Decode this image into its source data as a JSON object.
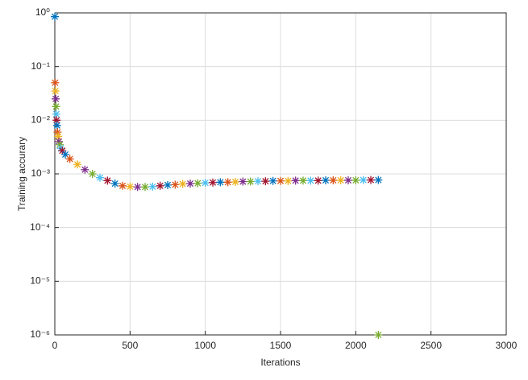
{
  "chart_data": {
    "type": "scatter",
    "x_label": "Iterations",
    "y_label": "Training accurary",
    "xlim": [
      0,
      3000
    ],
    "xticks": [
      0,
      500,
      1000,
      1500,
      2000,
      2500,
      3000
    ],
    "ylim": [
      1e-06,
      1
    ],
    "log_y": true,
    "grid": true,
    "yticks": [
      {
        "value": 1e-06,
        "label": "10⁻⁶"
      },
      {
        "value": 1e-05,
        "label": "10⁻⁵"
      },
      {
        "value": 0.0001,
        "label": "10⁻⁴"
      },
      {
        "value": 0.001,
        "label": "10⁻³"
      },
      {
        "value": 0.01,
        "label": "10⁻²"
      },
      {
        "value": 0.1,
        "label": "10⁻¹"
      },
      {
        "value": 1,
        "label": "10⁰"
      }
    ],
    "series": [
      {
        "colors": [
          "#0072bd",
          "#d95319",
          "#edb120",
          "#7e2f8e",
          "#77ac30",
          "#4dbeee",
          "#a2142f"
        ],
        "x": [
          0,
          2,
          4,
          6,
          8,
          10,
          12,
          15,
          18,
          22,
          27,
          33,
          40,
          50,
          70,
          100,
          150,
          200,
          250,
          300,
          350,
          400,
          450,
          500,
          550,
          600,
          650,
          700,
          750,
          800,
          850,
          900,
          950,
          1000,
          1050,
          1100,
          1150,
          1200,
          1250,
          1300,
          1350,
          1400,
          1450,
          1500,
          1550,
          1600,
          1650,
          1700,
          1750,
          1800,
          1850,
          1900,
          1950,
          2000,
          2050,
          2100,
          2150
        ],
        "values": [
          0.85,
          0.05,
          0.035,
          0.025,
          0.018,
          0.013,
          0.01,
          0.008,
          0.006,
          0.005,
          0.004,
          0.0035,
          0.003,
          0.0027,
          0.0023,
          0.0019,
          0.0015,
          0.0012,
          0.001,
          0.00085,
          0.00075,
          0.00066,
          0.0006,
          0.00058,
          0.00057,
          0.00057,
          0.00058,
          0.0006,
          0.00062,
          0.00063,
          0.00065,
          0.00066,
          0.00067,
          0.00068,
          0.00069,
          0.0007,
          0.0007,
          0.00071,
          0.00072,
          0.00072,
          0.00073,
          0.00073,
          0.00074,
          0.00074,
          0.00074,
          0.00075,
          0.00075,
          0.00075,
          0.00075,
          0.00076,
          0.00076,
          0.00076,
          0.00076,
          0.00076,
          0.00077,
          0.00077,
          0.00077
        ]
      },
      {
        "color": "#77ac30",
        "x": [
          2150
        ],
        "values": [
          1e-06
        ]
      }
    ]
  }
}
